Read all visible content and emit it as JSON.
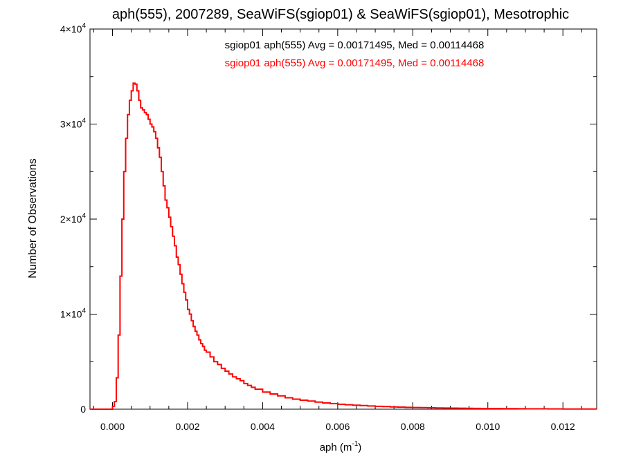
{
  "chart_data": {
    "type": "line",
    "style": "step-histogram",
    "title": "aph(555), 2007289, SeaWiFS(sgiop01) & SeaWiFS(sgiop01), Mesotrophic",
    "xlabel": {
      "base": "aph (m",
      "sup": "-1",
      "tail": ")"
    },
    "ylabel": "Number of Observations",
    "xlim": [
      -0.0006,
      0.0129
    ],
    "ylim": [
      0,
      40000
    ],
    "x_ticks": [
      {
        "value": 0.0,
        "label": "0.000"
      },
      {
        "value": 0.002,
        "label": "0.002"
      },
      {
        "value": 0.004,
        "label": "0.004"
      },
      {
        "value": 0.006,
        "label": "0.006"
      },
      {
        "value": 0.008,
        "label": "0.008"
      },
      {
        "value": 0.01,
        "label": "0.010"
      },
      {
        "value": 0.012,
        "label": "0.012"
      }
    ],
    "y_ticks": [
      {
        "value": 0,
        "mant": "0",
        "exp": ""
      },
      {
        "value": 10000,
        "mant": "1×10",
        "exp": "4"
      },
      {
        "value": 20000,
        "mant": "2×10",
        "exp": "4"
      },
      {
        "value": 30000,
        "mant": "3×10",
        "exp": "4"
      },
      {
        "value": 40000,
        "mant": "4×10",
        "exp": "4"
      }
    ],
    "grid": false,
    "annotations": [
      {
        "text": "sgiop01 aph(555) Avg = 0.00171495, Med = 0.00114468",
        "color": "#000000"
      },
      {
        "text": "sgiop01 aph(555) Avg = 0.00171495, Med = 0.00114468",
        "color": "#ff0000"
      }
    ],
    "series": [
      {
        "color": "#ff0000",
        "x": [
          -0.0006,
          -0.0001,
          0.0,
          5e-05,
          0.0001,
          0.00015,
          0.0002,
          0.00025,
          0.0003,
          0.00035,
          0.0004,
          0.00045,
          0.0005,
          0.00055,
          0.0006,
          0.00065,
          0.0007,
          0.00075,
          0.0008,
          0.00085,
          0.0009,
          0.00095,
          0.001,
          0.00105,
          0.0011,
          0.00115,
          0.0012,
          0.00125,
          0.0013,
          0.00135,
          0.0014,
          0.00145,
          0.0015,
          0.00155,
          0.0016,
          0.00165,
          0.0017,
          0.00175,
          0.0018,
          0.00185,
          0.0019,
          0.00195,
          0.002,
          0.00205,
          0.0021,
          0.00215,
          0.0022,
          0.00225,
          0.0023,
          0.00235,
          0.0024,
          0.00245,
          0.0025,
          0.0026,
          0.0027,
          0.0028,
          0.0029,
          0.003,
          0.0031,
          0.0032,
          0.0033,
          0.0034,
          0.0035,
          0.0036,
          0.0037,
          0.0038,
          0.004,
          0.0042,
          0.0044,
          0.0046,
          0.0048,
          0.005,
          0.0052,
          0.0054,
          0.0056,
          0.0058,
          0.006,
          0.0062,
          0.0064,
          0.0066,
          0.0068,
          0.007,
          0.0072,
          0.0074,
          0.0076,
          0.0078,
          0.008,
          0.0082,
          0.0084,
          0.0086,
          0.0088,
          0.009,
          0.0092,
          0.0094,
          0.0096,
          0.0098,
          0.01,
          0.0102,
          0.0104,
          0.0106,
          0.0108,
          0.011,
          0.0112,
          0.0114,
          0.0116,
          0.0118,
          0.012,
          0.0122,
          0.0124,
          0.0126,
          0.0128
        ],
        "y": [
          0,
          0,
          300,
          800,
          3300,
          7800,
          14000,
          20000,
          25000,
          28500,
          31000,
          32500,
          33500,
          34300,
          34200,
          33500,
          32500,
          31700,
          31500,
          31200,
          31000,
          30500,
          30000,
          29700,
          29200,
          28500,
          27500,
          26500,
          25000,
          23500,
          22000,
          21200,
          20200,
          19200,
          18200,
          17200,
          16000,
          15200,
          14200,
          13200,
          12300,
          11500,
          10500,
          10000,
          9300,
          8700,
          8200,
          7800,
          7300,
          6900,
          6600,
          6200,
          6000,
          5500,
          5000,
          4700,
          4300,
          4000,
          3700,
          3400,
          3200,
          3000,
          2700,
          2500,
          2300,
          2100,
          1800,
          1600,
          1400,
          1200,
          1050,
          950,
          850,
          750,
          650,
          580,
          520,
          460,
          420,
          380,
          340,
          300,
          270,
          240,
          215,
          195,
          175,
          160,
          145,
          130,
          120,
          110,
          100,
          90,
          82,
          75,
          68,
          62,
          56,
          50,
          45,
          40,
          36,
          32,
          28,
          25,
          22,
          20,
          18,
          16,
          14
        ]
      }
    ]
  }
}
